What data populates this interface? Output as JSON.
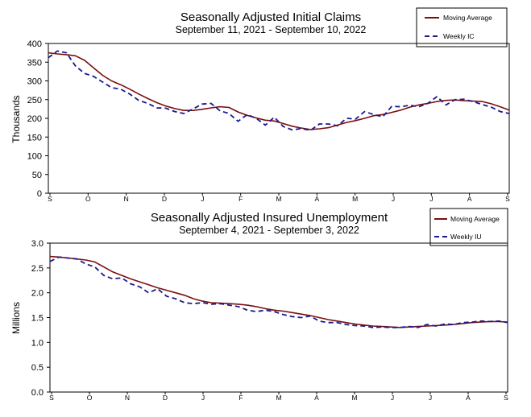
{
  "chart_data": [
    {
      "type": "line",
      "title": "Seasonally Adjusted Initial Claims",
      "subtitle": "September 11, 2021 - September 10, 2022",
      "ylabel": "Thousands",
      "xlabel": "",
      "ylim": [
        0,
        400
      ],
      "yticks": [
        "400",
        "350",
        "300",
        "250",
        "200",
        "150",
        "100",
        "50",
        "0"
      ],
      "x_tick_labels": [
        "S",
        "O",
        "N",
        "D",
        "J",
        "F",
        "M",
        "A",
        "M",
        "J",
        "J",
        "A",
        "S"
      ],
      "legend": [
        "Moving Average",
        "Weekly IC"
      ],
      "legend_position": "top-right",
      "grid": false,
      "colors": {
        "moving_average": "#7a0f0f",
        "weekly": "#1a1a8c"
      },
      "series": [
        {
          "name": "Moving Average",
          "values": [
            375,
            372,
            370,
            367,
            355,
            335,
            315,
            300,
            290,
            278,
            265,
            253,
            242,
            233,
            226,
            221,
            221,
            224,
            228,
            231,
            229,
            217,
            208,
            201,
            195,
            193,
            186,
            179,
            174,
            170,
            172,
            175,
            182,
            189,
            194,
            200,
            207,
            210,
            216,
            222,
            230,
            236,
            240,
            245,
            248,
            249,
            247,
            246,
            245,
            239,
            231,
            222
          ]
        },
        {
          "name": "Weekly IC",
          "values": [
            362,
            380,
            375,
            340,
            320,
            312,
            297,
            282,
            278,
            265,
            248,
            240,
            228,
            227,
            218,
            213,
            225,
            238,
            240,
            220,
            213,
            192,
            210,
            200,
            182,
            203,
            178,
            169,
            173,
            168,
            185,
            185,
            180,
            200,
            198,
            218,
            210,
            204,
            232,
            231,
            235,
            231,
            240,
            258,
            236,
            250,
            251,
            245,
            237,
            230,
            218,
            213
          ]
        }
      ]
    },
    {
      "type": "line",
      "title": "Seasonally Adjusted Insured Unemployment",
      "subtitle": "September 4, 2021 - September 3, 2022",
      "ylabel": "Millions",
      "xlabel": "",
      "ylim": [
        0,
        3
      ],
      "yticks": [
        "3.0",
        "2.5",
        "2.0",
        "1.5",
        "1.0",
        "0.5",
        "0.0"
      ],
      "x_tick_labels": [
        "S",
        "O",
        "N",
        "D",
        "J",
        "F",
        "M",
        "A",
        "M",
        "J",
        "J",
        "A",
        "S"
      ],
      "legend": [
        "Moving Average",
        "Weekly IU"
      ],
      "legend_position": "top-right",
      "grid": false,
      "colors": {
        "moving_average": "#7a0f0f",
        "weekly": "#1a1a8c"
      },
      "series": [
        {
          "name": "Moving Average",
          "values": [
            2.73,
            2.72,
            2.7,
            2.68,
            2.66,
            2.62,
            2.52,
            2.42,
            2.35,
            2.28,
            2.22,
            2.16,
            2.1,
            2.05,
            2.0,
            1.95,
            1.88,
            1.83,
            1.8,
            1.79,
            1.78,
            1.77,
            1.75,
            1.72,
            1.68,
            1.65,
            1.63,
            1.6,
            1.57,
            1.54,
            1.5,
            1.46,
            1.43,
            1.4,
            1.37,
            1.35,
            1.33,
            1.32,
            1.31,
            1.3,
            1.31,
            1.32,
            1.33,
            1.34,
            1.35,
            1.36,
            1.38,
            1.4,
            1.41,
            1.42,
            1.42,
            1.41
          ]
        },
        {
          "name": "Weekly IU",
          "values": [
            2.63,
            2.72,
            2.7,
            2.68,
            2.58,
            2.52,
            2.35,
            2.28,
            2.3,
            2.18,
            2.12,
            2.0,
            2.08,
            1.93,
            1.88,
            1.8,
            1.78,
            1.8,
            1.77,
            1.78,
            1.75,
            1.72,
            1.65,
            1.62,
            1.65,
            1.62,
            1.56,
            1.52,
            1.5,
            1.53,
            1.43,
            1.4,
            1.4,
            1.36,
            1.34,
            1.33,
            1.3,
            1.31,
            1.3,
            1.3,
            1.32,
            1.3,
            1.36,
            1.33,
            1.37,
            1.36,
            1.4,
            1.41,
            1.43,
            1.42,
            1.43,
            1.4
          ]
        }
      ]
    }
  ]
}
